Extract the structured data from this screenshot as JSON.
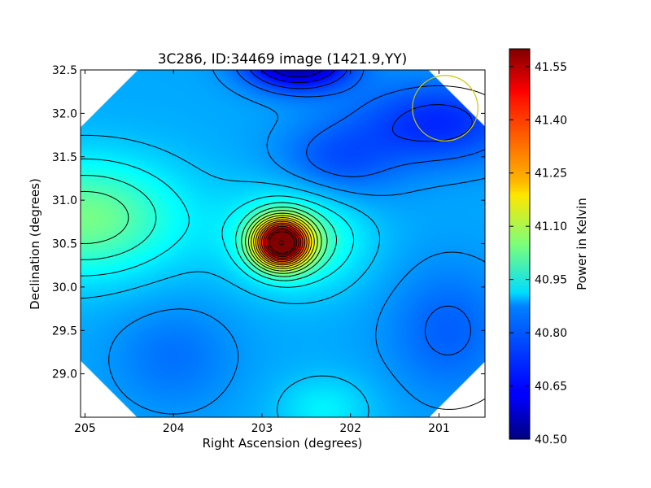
{
  "chart_data": {
    "type": "heatmap",
    "title": "3C286, ID:34469 image (1421.9,YY)",
    "xlabel": "Right Ascension (degrees)",
    "ylabel": "Declination (degrees)",
    "xlim": [
      205.05,
      200.48
    ],
    "ylim": [
      28.5,
      32.5
    ],
    "x_ticks": [
      "205",
      "204",
      "203",
      "202",
      "201"
    ],
    "x_tick_values": [
      205,
      204,
      203,
      202,
      201
    ],
    "y_ticks": [
      "29.0",
      "29.5",
      "30.0",
      "30.5",
      "31.0",
      "31.5",
      "32.0",
      "32.5"
    ],
    "y_tick_values": [
      29.0,
      29.5,
      30.0,
      30.5,
      31.0,
      31.5,
      32.0,
      32.5
    ],
    "colorbar": {
      "label": "Power in Kelvin",
      "range": [
        40.5,
        41.6
      ],
      "ticks": [
        "40.50",
        "40.65",
        "40.80",
        "40.95",
        "41.10",
        "41.25",
        "41.40",
        "41.55"
      ],
      "tick_values": [
        40.5,
        40.65,
        40.8,
        40.95,
        41.1,
        41.25,
        41.4,
        41.55
      ],
      "colormap": "jet"
    },
    "source": {
      "ra": 202.78,
      "dec": 30.51,
      "peak": 41.6
    },
    "beam_circle": {
      "ra": 200.93,
      "dec": 32.06,
      "radius_deg": 0.37,
      "color": "#c8c800"
    },
    "grid": false
  }
}
